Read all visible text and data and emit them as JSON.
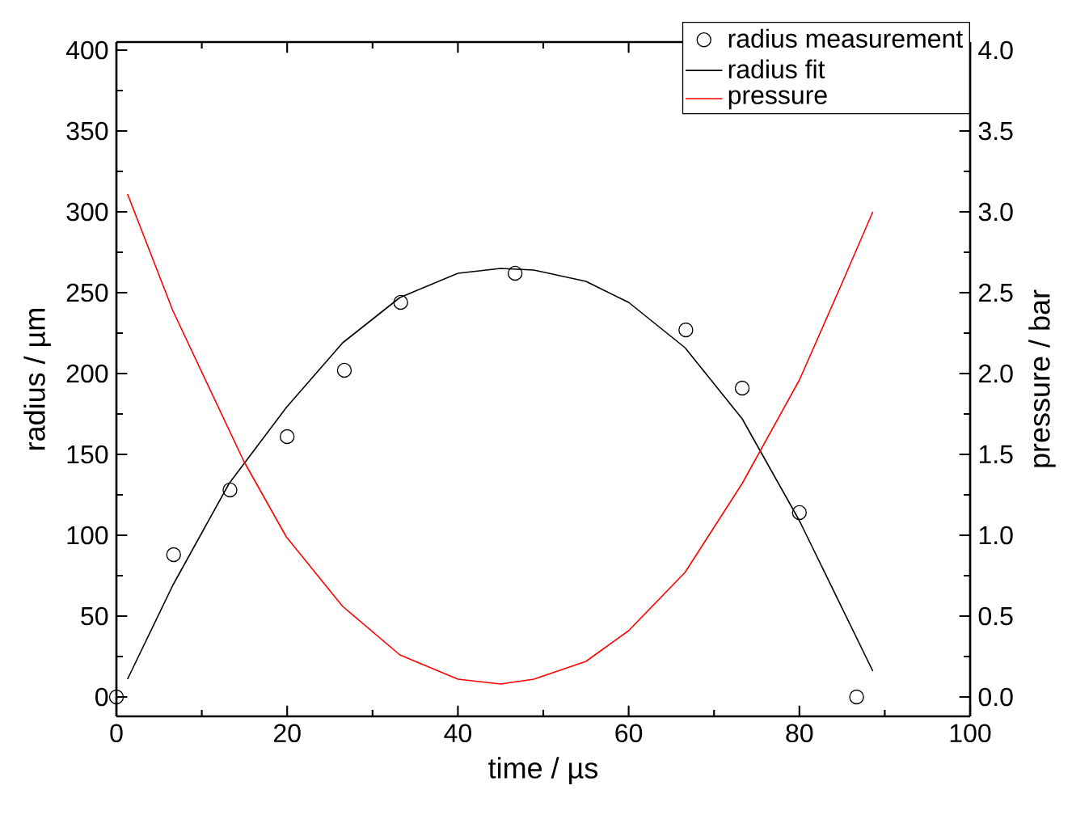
{
  "chart_data": {
    "type": "line",
    "xlabel": "time / µs",
    "ylabel": "radius / µm",
    "y2label": "pressure / bar",
    "xlim": [
      0,
      100
    ],
    "xticks": [
      0,
      20,
      40,
      60,
      80,
      100
    ],
    "ylim": [
      -12,
      405
    ],
    "yticks": [
      0,
      50,
      100,
      150,
      200,
      250,
      300,
      350,
      400
    ],
    "y2lim": [
      -0.12,
      4.05
    ],
    "y2ticks": [
      {
        "value": 0,
        "label": "0.0"
      },
      0.5,
      {
        "value": 1,
        "label": "1.0"
      },
      1.5,
      {
        "value": 2,
        "label": "2.0"
      },
      2.5,
      {
        "value": 3,
        "label": "3.0"
      },
      3.5,
      {
        "value": 4,
        "label": "4.0"
      }
    ],
    "legend": "top right",
    "grid": false,
    "series": [
      {
        "name": "radius measurement",
        "type": "scatter",
        "marker": "circle",
        "color": "#000000",
        "x": [
          0,
          6.7,
          13.3,
          20,
          26.7,
          33.3,
          46.7,
          66.7,
          73.3,
          80,
          86.7
        ],
        "values": [
          0,
          88,
          128,
          161,
          202,
          244,
          262,
          227,
          191,
          114,
          0
        ]
      },
      {
        "name": "radius fit",
        "color": "#000000",
        "x": [
          1.3,
          6.6,
          13.2,
          19.9,
          26.5,
          33.2,
          40,
          45,
          48.9,
          55,
          60,
          66.6,
          73.3,
          80,
          88.6
        ],
        "values": [
          11,
          69,
          132,
          179,
          219,
          247,
          262,
          265,
          264,
          257,
          244,
          216,
          172,
          109,
          16
        ]
      },
      {
        "name": "pressure",
        "axis": "y2",
        "color": "#ff0000",
        "x": [
          1.3,
          6.6,
          14.9,
          19.9,
          26.5,
          33.2,
          40,
          45,
          48.9,
          55,
          60,
          66.6,
          73.3,
          80,
          85,
          88.6
        ],
        "values": [
          3.11,
          2.39,
          1.46,
          0.99,
          0.56,
          0.26,
          0.11,
          0.08,
          0.11,
          0.22,
          0.41,
          0.77,
          1.32,
          1.96,
          2.56,
          3.0
        ]
      }
    ]
  }
}
